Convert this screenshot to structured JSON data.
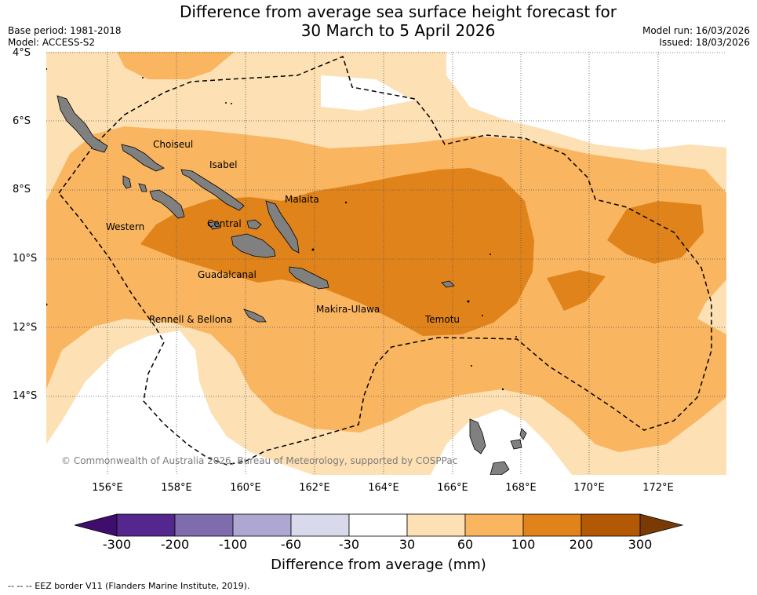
{
  "title_line1": "Difference from average sea surface height forecast for",
  "title_line2": "30 March to 5 April 2026",
  "base_period": "Base period: 1981-2018",
  "model": "Model: ACCESS-S2",
  "model_run": "Model run: 16/03/2026",
  "issued": "Issued: 18/03/2026",
  "lat_labels": [
    "4°S",
    "6°S",
    "8°S",
    "10°S",
    "12°S",
    "14°S"
  ],
  "lon_labels": [
    "156°E",
    "158°E",
    "160°E",
    "162°E",
    "164°E",
    "166°E",
    "168°E",
    "170°E",
    "172°E"
  ],
  "regions": {
    "choiseul": "Choiseul",
    "isabel": "Isabel",
    "malaita": "Malaita",
    "western": "Western",
    "central": "Central",
    "guadalcanal": "Guadalcanal",
    "makira": "Makira-Ulawa",
    "rennell": "Rennell & Bellona",
    "temotu": "Temotu"
  },
  "copyright": "© Commonwealth of Australia 2026, Bureau of Meteorology, supported by COSPPac",
  "colorbar": {
    "labels": [
      "-300",
      "-200",
      "-100",
      "-60",
      "-30",
      "30",
      "60",
      "100",
      "200",
      "300"
    ],
    "colors": [
      "#3f0d6b",
      "#54278f",
      "#7e6cad",
      "#aea7d2",
      "#d8d9ea",
      "#ffffff",
      "#fde0b3",
      "#f9b560",
      "#e0831a",
      "#b35805",
      "#7a3a05"
    ],
    "title": "Difference from average (mm)"
  },
  "legend_text": "--  --  -- EEZ border V11 (Flanders Marine Institute, 2019)."
}
